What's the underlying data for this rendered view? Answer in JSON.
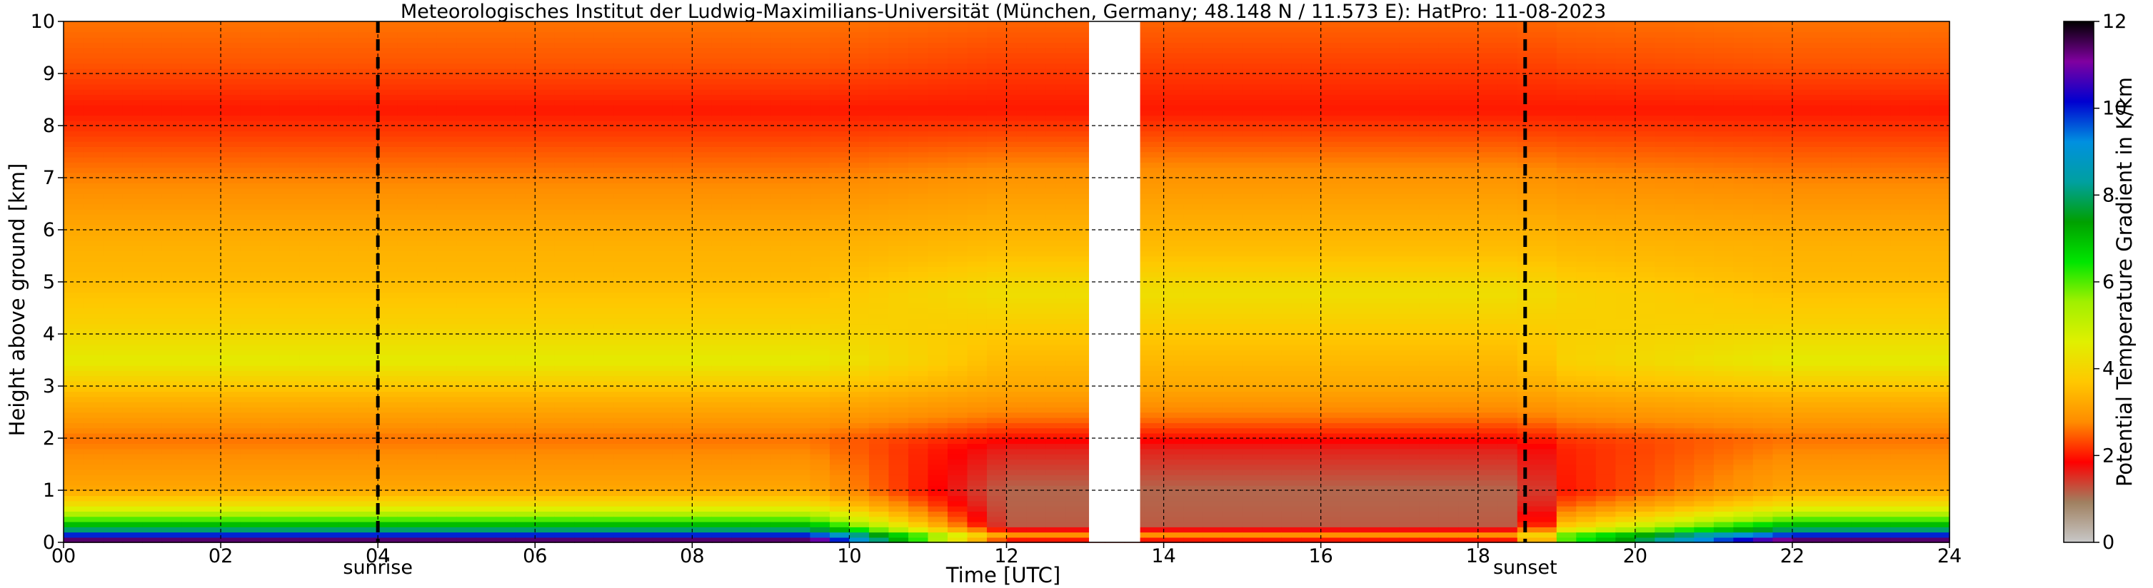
{
  "chart_data": {
    "type": "heatmap",
    "title": "Meteorologisches Institut der Ludwig-Maximilians-Universität (München, Germany; 48.148 N / 11.573 E):    HatPro: 11-08-2023",
    "xlabel": "Time [UTC]",
    "ylabel": "Height above ground [km]",
    "xlim": [
      0,
      24
    ],
    "ylim": [
      0,
      10
    ],
    "x_ticks": [
      "00",
      "02",
      "04",
      "06",
      "08",
      "10",
      "12",
      "14",
      "16",
      "18",
      "20",
      "22",
      "24"
    ],
    "y_ticks": [
      "0",
      "1",
      "2",
      "3",
      "4",
      "5",
      "6",
      "7",
      "8",
      "9",
      "10"
    ],
    "grid": true,
    "colorbar": {
      "label": "Potential Temperature Gradient in K/km",
      "range": [
        0,
        12
      ],
      "ticks": [
        "0",
        "2",
        "4",
        "6",
        "8",
        "10",
        "12"
      ],
      "colors": [
        "#c8c8c8",
        "#a08060",
        "#ff0000",
        "#ff8c00",
        "#ffc800",
        "#e0f000",
        "#a0f000",
        "#00e600",
        "#00a000",
        "#00a0a0",
        "#0090e0",
        "#0000d0",
        "#8000a0",
        "#000000"
      ]
    },
    "events": [
      {
        "label": "sunrise",
        "x": 4.0
      },
      {
        "label": "sunset",
        "x": 18.6
      }
    ],
    "missing_data": [
      [
        13.05,
        13.7
      ]
    ],
    "profile": [
      {
        "h": 0.0,
        "v": 12
      },
      {
        "h": 0.12,
        "v": 10.5
      },
      {
        "h": 0.25,
        "v": 8
      },
      {
        "h": 0.45,
        "v": 6
      },
      {
        "h": 0.7,
        "v": 4.3
      },
      {
        "h": 1.0,
        "v": 3.2
      },
      {
        "h": 2.0,
        "v": 2.6
      },
      {
        "h": 2.8,
        "v": 3.4
      },
      {
        "h": 3.5,
        "v": 4.5
      },
      {
        "h": 4.2,
        "v": 3.9
      },
      {
        "h": 5.0,
        "v": 3.5
      },
      {
        "h": 5.8,
        "v": 3.3
      },
      {
        "h": 7.0,
        "v": 2.7
      },
      {
        "h": 8.3,
        "v": 2.0
      },
      {
        "h": 9.2,
        "v": 2.4
      },
      {
        "h": 10.0,
        "v": 2.6
      }
    ],
    "afternoon_profile": [
      {
        "h": 0.0,
        "v": 0.6
      },
      {
        "h": 0.1,
        "v": 3.4
      },
      {
        "h": 0.3,
        "v": 1.2
      },
      {
        "h": 1.0,
        "v": 1.1
      },
      {
        "h": 1.8,
        "v": 1.6
      },
      {
        "h": 2.4,
        "v": 2.6
      },
      {
        "h": 3.0,
        "v": 3.2
      },
      {
        "h": 4.0,
        "v": 3.7
      },
      {
        "h": 4.8,
        "v": 4.2
      },
      {
        "h": 5.5,
        "v": 3.6
      },
      {
        "h": 7.0,
        "v": 2.9
      },
      {
        "h": 8.3,
        "v": 2.0
      },
      {
        "h": 10.0,
        "v": 2.5
      }
    ]
  }
}
